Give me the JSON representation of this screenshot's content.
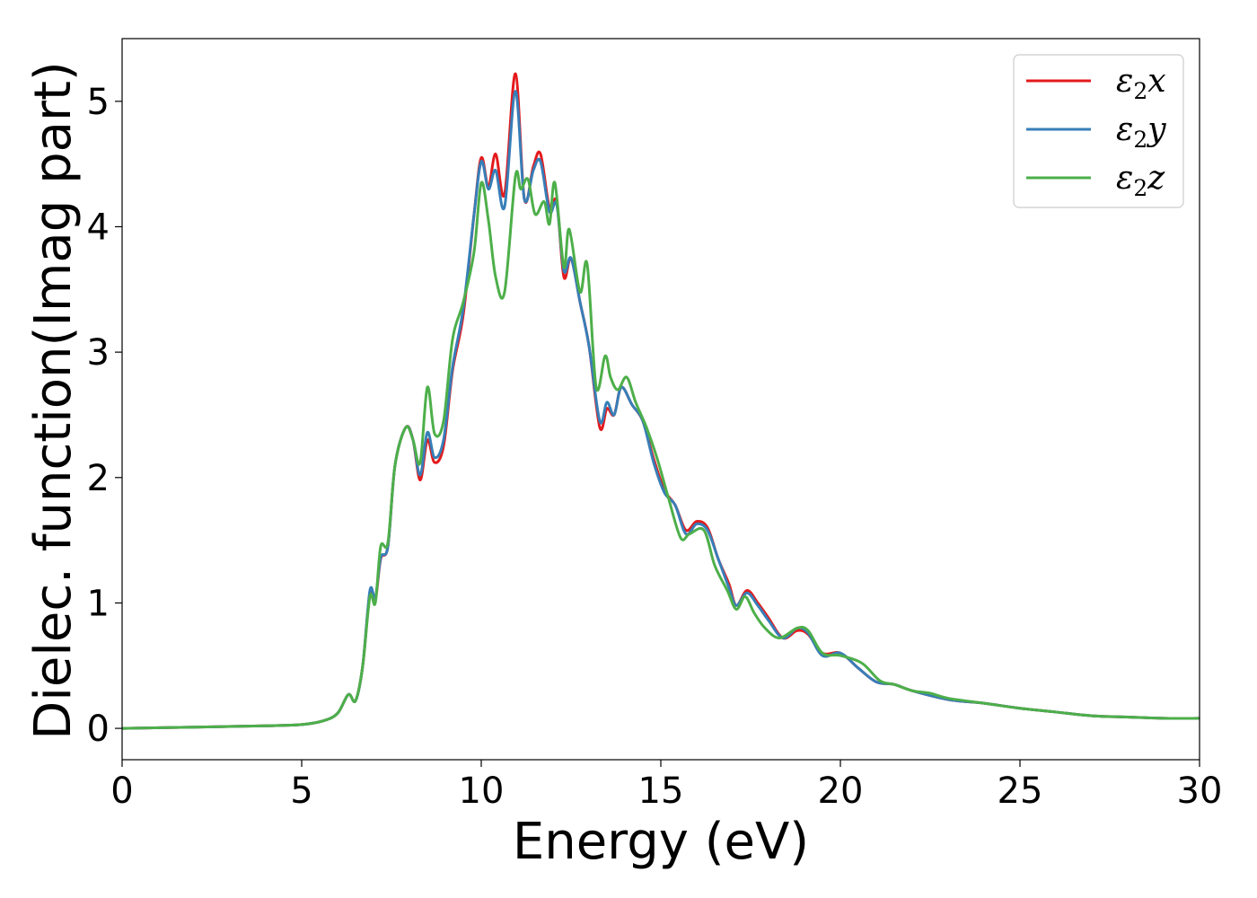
{
  "chart_data": {
    "type": "line",
    "title": "",
    "xlabel": "Energy (eV)",
    "ylabel": "Dielec. function(Imag part)",
    "xlim": [
      0,
      30
    ],
    "ylim": [
      -0.25,
      5.5
    ],
    "xticks": [
      0,
      5,
      10,
      15,
      20,
      25,
      30
    ],
    "yticks": [
      0,
      1,
      2,
      3,
      4,
      5
    ],
    "grid": false,
    "legend_position": "top-right",
    "series": [
      {
        "name": "ε2x",
        "legend": {
          "symbol": "ε",
          "sub": "2",
          "suffix": "x"
        },
        "color": "#e41a1c",
        "points": [
          [
            0,
            0.0
          ],
          [
            2,
            0.01
          ],
          [
            4,
            0.02
          ],
          [
            5,
            0.03
          ],
          [
            5.6,
            0.06
          ],
          [
            6.0,
            0.12
          ],
          [
            6.3,
            0.27
          ],
          [
            6.5,
            0.22
          ],
          [
            6.7,
            0.5
          ],
          [
            6.9,
            1.08
          ],
          [
            7.05,
            1.02
          ],
          [
            7.2,
            1.35
          ],
          [
            7.4,
            1.45
          ],
          [
            7.6,
            2.1
          ],
          [
            7.9,
            2.4
          ],
          [
            8.1,
            2.3
          ],
          [
            8.3,
            1.98
          ],
          [
            8.5,
            2.3
          ],
          [
            8.7,
            2.12
          ],
          [
            8.95,
            2.25
          ],
          [
            9.2,
            2.85
          ],
          [
            9.5,
            3.3
          ],
          [
            9.8,
            4.1
          ],
          [
            10.0,
            4.55
          ],
          [
            10.2,
            4.32
          ],
          [
            10.4,
            4.58
          ],
          [
            10.65,
            4.26
          ],
          [
            10.95,
            5.22
          ],
          [
            11.2,
            4.22
          ],
          [
            11.45,
            4.48
          ],
          [
            11.65,
            4.58
          ],
          [
            11.9,
            4.15
          ],
          [
            12.1,
            4.2
          ],
          [
            12.3,
            3.6
          ],
          [
            12.5,
            3.75
          ],
          [
            12.75,
            3.4
          ],
          [
            13.0,
            3.05
          ],
          [
            13.3,
            2.4
          ],
          [
            13.5,
            2.55
          ],
          [
            13.7,
            2.5
          ],
          [
            13.9,
            2.72
          ],
          [
            14.2,
            2.58
          ],
          [
            14.5,
            2.45
          ],
          [
            14.8,
            2.15
          ],
          [
            15.1,
            1.9
          ],
          [
            15.4,
            1.78
          ],
          [
            15.7,
            1.58
          ],
          [
            16.0,
            1.65
          ],
          [
            16.3,
            1.6
          ],
          [
            16.6,
            1.35
          ],
          [
            16.9,
            1.15
          ],
          [
            17.1,
            0.98
          ],
          [
            17.4,
            1.1
          ],
          [
            17.7,
            1.0
          ],
          [
            18.0,
            0.88
          ],
          [
            18.4,
            0.72
          ],
          [
            18.8,
            0.78
          ],
          [
            19.1,
            0.75
          ],
          [
            19.5,
            0.6
          ],
          [
            20.0,
            0.6
          ],
          [
            20.5,
            0.48
          ],
          [
            21.0,
            0.37
          ],
          [
            21.5,
            0.35
          ],
          [
            22.0,
            0.3
          ],
          [
            23.0,
            0.23
          ],
          [
            24.0,
            0.2
          ],
          [
            25.0,
            0.16
          ],
          [
            26.0,
            0.13
          ],
          [
            27.0,
            0.1
          ],
          [
            28.0,
            0.09
          ],
          [
            29.0,
            0.08
          ],
          [
            30.0,
            0.08
          ]
        ]
      },
      {
        "name": "ε2y",
        "legend": {
          "symbol": "ε",
          "sub": "2",
          "suffix": "y"
        },
        "color": "#377eb8",
        "points": [
          [
            0,
            0.0
          ],
          [
            2,
            0.01
          ],
          [
            4,
            0.02
          ],
          [
            5,
            0.03
          ],
          [
            5.6,
            0.06
          ],
          [
            6.0,
            0.12
          ],
          [
            6.3,
            0.27
          ],
          [
            6.5,
            0.22
          ],
          [
            6.7,
            0.5
          ],
          [
            6.9,
            1.1
          ],
          [
            7.05,
            1.04
          ],
          [
            7.2,
            1.36
          ],
          [
            7.4,
            1.45
          ],
          [
            7.6,
            2.1
          ],
          [
            7.9,
            2.4
          ],
          [
            8.1,
            2.3
          ],
          [
            8.3,
            2.02
          ],
          [
            8.5,
            2.36
          ],
          [
            8.7,
            2.16
          ],
          [
            8.95,
            2.3
          ],
          [
            9.2,
            2.88
          ],
          [
            9.5,
            3.35
          ],
          [
            9.8,
            4.1
          ],
          [
            10.0,
            4.52
          ],
          [
            10.2,
            4.3
          ],
          [
            10.4,
            4.45
          ],
          [
            10.65,
            4.16
          ],
          [
            10.95,
            5.08
          ],
          [
            11.2,
            4.22
          ],
          [
            11.45,
            4.45
          ],
          [
            11.65,
            4.52
          ],
          [
            11.9,
            4.12
          ],
          [
            12.1,
            4.18
          ],
          [
            12.3,
            3.65
          ],
          [
            12.5,
            3.75
          ],
          [
            12.75,
            3.4
          ],
          [
            13.0,
            3.05
          ],
          [
            13.3,
            2.45
          ],
          [
            13.5,
            2.6
          ],
          [
            13.7,
            2.5
          ],
          [
            13.9,
            2.72
          ],
          [
            14.2,
            2.58
          ],
          [
            14.5,
            2.45
          ],
          [
            14.8,
            2.12
          ],
          [
            15.1,
            1.88
          ],
          [
            15.4,
            1.78
          ],
          [
            15.7,
            1.55
          ],
          [
            16.0,
            1.63
          ],
          [
            16.3,
            1.58
          ],
          [
            16.6,
            1.35
          ],
          [
            16.9,
            1.12
          ],
          [
            17.1,
            0.98
          ],
          [
            17.4,
            1.08
          ],
          [
            17.7,
            0.98
          ],
          [
            18.0,
            0.86
          ],
          [
            18.4,
            0.72
          ],
          [
            18.8,
            0.8
          ],
          [
            19.1,
            0.76
          ],
          [
            19.5,
            0.58
          ],
          [
            20.0,
            0.6
          ],
          [
            20.5,
            0.48
          ],
          [
            21.0,
            0.37
          ],
          [
            21.5,
            0.35
          ],
          [
            22.0,
            0.3
          ],
          [
            23.0,
            0.23
          ],
          [
            24.0,
            0.2
          ],
          [
            25.0,
            0.16
          ],
          [
            26.0,
            0.13
          ],
          [
            27.0,
            0.1
          ],
          [
            28.0,
            0.09
          ],
          [
            29.0,
            0.08
          ],
          [
            30.0,
            0.08
          ]
        ]
      },
      {
        "name": "ε2z",
        "legend": {
          "symbol": "ε",
          "sub": "2",
          "suffix": "z"
        },
        "color": "#4daf4a",
        "points": [
          [
            0,
            0.0
          ],
          [
            2,
            0.01
          ],
          [
            4,
            0.02
          ],
          [
            5,
            0.03
          ],
          [
            5.6,
            0.06
          ],
          [
            6.0,
            0.12
          ],
          [
            6.3,
            0.27
          ],
          [
            6.5,
            0.22
          ],
          [
            6.7,
            0.5
          ],
          [
            6.9,
            1.05
          ],
          [
            7.05,
            1.0
          ],
          [
            7.2,
            1.45
          ],
          [
            7.4,
            1.48
          ],
          [
            7.6,
            2.1
          ],
          [
            7.9,
            2.4
          ],
          [
            8.1,
            2.3
          ],
          [
            8.3,
            2.12
          ],
          [
            8.5,
            2.72
          ],
          [
            8.7,
            2.35
          ],
          [
            8.95,
            2.45
          ],
          [
            9.2,
            3.1
          ],
          [
            9.5,
            3.4
          ],
          [
            9.8,
            3.8
          ],
          [
            10.0,
            4.35
          ],
          [
            10.2,
            4.05
          ],
          [
            10.4,
            3.6
          ],
          [
            10.65,
            3.48
          ],
          [
            10.95,
            4.4
          ],
          [
            11.1,
            4.3
          ],
          [
            11.3,
            4.38
          ],
          [
            11.5,
            4.1
          ],
          [
            11.75,
            4.2
          ],
          [
            11.9,
            4.02
          ],
          [
            12.05,
            4.35
          ],
          [
            12.3,
            3.68
          ],
          [
            12.45,
            3.98
          ],
          [
            12.75,
            3.48
          ],
          [
            12.95,
            3.7
          ],
          [
            13.2,
            2.72
          ],
          [
            13.45,
            2.97
          ],
          [
            13.6,
            2.8
          ],
          [
            13.8,
            2.7
          ],
          [
            14.05,
            2.8
          ],
          [
            14.3,
            2.6
          ],
          [
            14.6,
            2.4
          ],
          [
            14.9,
            2.15
          ],
          [
            15.2,
            1.85
          ],
          [
            15.55,
            1.52
          ],
          [
            15.8,
            1.55
          ],
          [
            16.2,
            1.58
          ],
          [
            16.5,
            1.3
          ],
          [
            16.85,
            1.1
          ],
          [
            17.1,
            0.95
          ],
          [
            17.35,
            1.05
          ],
          [
            17.6,
            0.92
          ],
          [
            17.9,
            0.8
          ],
          [
            18.3,
            0.72
          ],
          [
            18.8,
            0.8
          ],
          [
            19.1,
            0.78
          ],
          [
            19.5,
            0.6
          ],
          [
            20.0,
            0.58
          ],
          [
            20.6,
            0.52
          ],
          [
            21.1,
            0.38
          ],
          [
            21.5,
            0.35
          ],
          [
            22.0,
            0.3
          ],
          [
            22.5,
            0.28
          ],
          [
            23.0,
            0.24
          ],
          [
            24.0,
            0.2
          ],
          [
            25.0,
            0.16
          ],
          [
            26.0,
            0.13
          ],
          [
            27.0,
            0.1
          ],
          [
            28.0,
            0.09
          ],
          [
            29.0,
            0.08
          ],
          [
            30.0,
            0.08
          ]
        ]
      }
    ]
  }
}
